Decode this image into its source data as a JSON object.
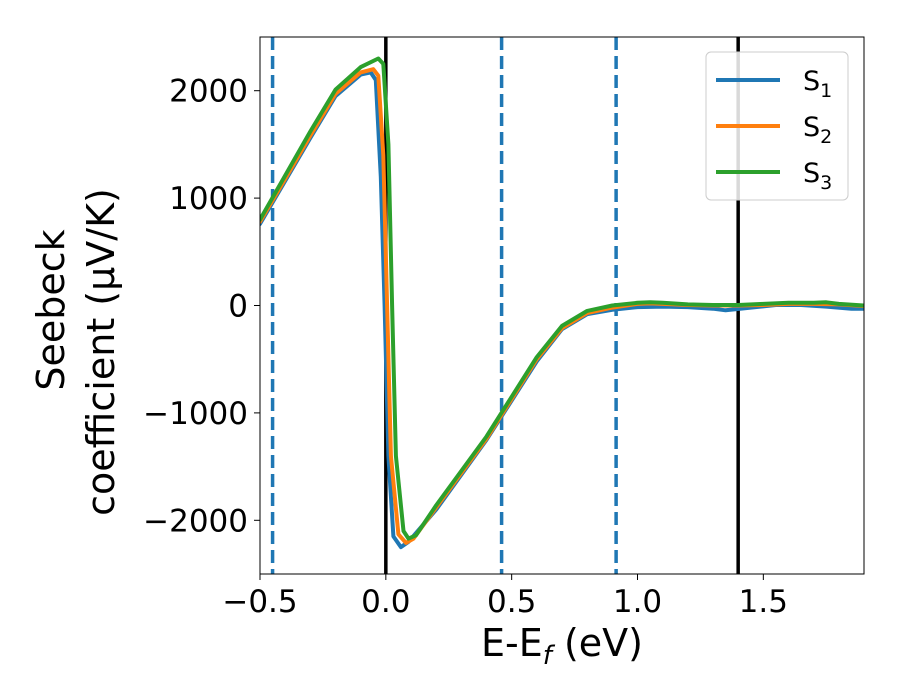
{
  "chart_data": {
    "type": "line",
    "xlabel": {
      "main": "E-E",
      "sub": "f",
      "tail": " (eV)"
    },
    "ylabel": {
      "line1": "Seebeck",
      "line2": "coefficient  (μV/K)"
    },
    "xlim": [
      -0.5,
      1.9
    ],
    "ylim": [
      -2500,
      2500
    ],
    "xticks": [
      {
        "value": -0.5,
        "label": "−0.5"
      },
      {
        "value": 0.0,
        "label": "0.0"
      },
      {
        "value": 0.5,
        "label": "0.5"
      },
      {
        "value": 1.0,
        "label": "1.0"
      },
      {
        "value": 1.5,
        "label": "1.5"
      }
    ],
    "yticks": [
      {
        "value": 2000,
        "label": "2000"
      },
      {
        "value": 1000,
        "label": "1000"
      },
      {
        "value": 0,
        "label": "0"
      },
      {
        "value": -1000,
        "label": "−1000"
      },
      {
        "value": -2000,
        "label": "−2000"
      }
    ],
    "vlines_solid": {
      "x": [
        0.0,
        1.4
      ],
      "color": "#000000"
    },
    "vlines_dashed": {
      "x": [
        -0.45,
        0.46,
        0.915
      ],
      "color": "#1f77b4"
    },
    "legend": {
      "position": "top-right"
    },
    "series": [
      {
        "name": "S",
        "sub": "1",
        "color": "#1f77b4",
        "points": [
          [
            -0.5,
            760
          ],
          [
            -0.4,
            1160
          ],
          [
            -0.3,
            1560
          ],
          [
            -0.2,
            1950
          ],
          [
            -0.1,
            2150
          ],
          [
            -0.06,
            2170
          ],
          [
            -0.04,
            2100
          ],
          [
            -0.02,
            1200
          ],
          [
            -0.005,
            0
          ],
          [
            0.01,
            -1400
          ],
          [
            0.03,
            -2150
          ],
          [
            0.06,
            -2250
          ],
          [
            0.09,
            -2200
          ],
          [
            0.2,
            -1900
          ],
          [
            0.4,
            -1250
          ],
          [
            0.6,
            -520
          ],
          [
            0.7,
            -220
          ],
          [
            0.8,
            -80
          ],
          [
            0.9,
            -40
          ],
          [
            1.0,
            -15
          ],
          [
            1.1,
            -10
          ],
          [
            1.2,
            -15
          ],
          [
            1.3,
            -30
          ],
          [
            1.35,
            -45
          ],
          [
            1.45,
            -20
          ],
          [
            1.55,
            5
          ],
          [
            1.65,
            5
          ],
          [
            1.75,
            -10
          ],
          [
            1.85,
            -30
          ],
          [
            1.9,
            -30
          ]
        ]
      },
      {
        "name": "S",
        "sub": "2",
        "color": "#ff7f0e",
        "points": [
          [
            -0.5,
            780
          ],
          [
            -0.4,
            1180
          ],
          [
            -0.3,
            1580
          ],
          [
            -0.2,
            1970
          ],
          [
            -0.1,
            2170
          ],
          [
            -0.05,
            2200
          ],
          [
            -0.03,
            2140
          ],
          [
            -0.01,
            1400
          ],
          [
            0.005,
            0
          ],
          [
            0.02,
            -1400
          ],
          [
            0.05,
            -2130
          ],
          [
            0.08,
            -2210
          ],
          [
            0.11,
            -2170
          ],
          [
            0.2,
            -1880
          ],
          [
            0.4,
            -1240
          ],
          [
            0.6,
            -500
          ],
          [
            0.7,
            -210
          ],
          [
            0.8,
            -70
          ],
          [
            0.9,
            -20
          ],
          [
            1.0,
            15
          ],
          [
            1.05,
            20
          ],
          [
            1.1,
            15
          ],
          [
            1.2,
            5
          ],
          [
            1.3,
            0
          ],
          [
            1.4,
            0
          ],
          [
            1.5,
            5
          ],
          [
            1.6,
            15
          ],
          [
            1.7,
            15
          ],
          [
            1.8,
            10
          ],
          [
            1.9,
            -5
          ]
        ]
      },
      {
        "name": "S",
        "sub": "3",
        "color": "#2ca02c",
        "points": [
          [
            -0.5,
            800
          ],
          [
            -0.4,
            1210
          ],
          [
            -0.3,
            1620
          ],
          [
            -0.2,
            2010
          ],
          [
            -0.1,
            2220
          ],
          [
            -0.03,
            2300
          ],
          [
            -0.01,
            2250
          ],
          [
            0.01,
            1500
          ],
          [
            0.025,
            0
          ],
          [
            0.04,
            -1400
          ],
          [
            0.07,
            -2100
          ],
          [
            0.09,
            -2170
          ],
          [
            0.12,
            -2140
          ],
          [
            0.2,
            -1860
          ],
          [
            0.4,
            -1220
          ],
          [
            0.6,
            -480
          ],
          [
            0.7,
            -190
          ],
          [
            0.8,
            -50
          ],
          [
            0.9,
            0
          ],
          [
            1.0,
            25
          ],
          [
            1.05,
            30
          ],
          [
            1.1,
            25
          ],
          [
            1.2,
            10
          ],
          [
            1.3,
            5
          ],
          [
            1.4,
            5
          ],
          [
            1.5,
            15
          ],
          [
            1.6,
            25
          ],
          [
            1.7,
            25
          ],
          [
            1.75,
            30
          ],
          [
            1.8,
            15
          ],
          [
            1.9,
            0
          ]
        ]
      }
    ]
  }
}
